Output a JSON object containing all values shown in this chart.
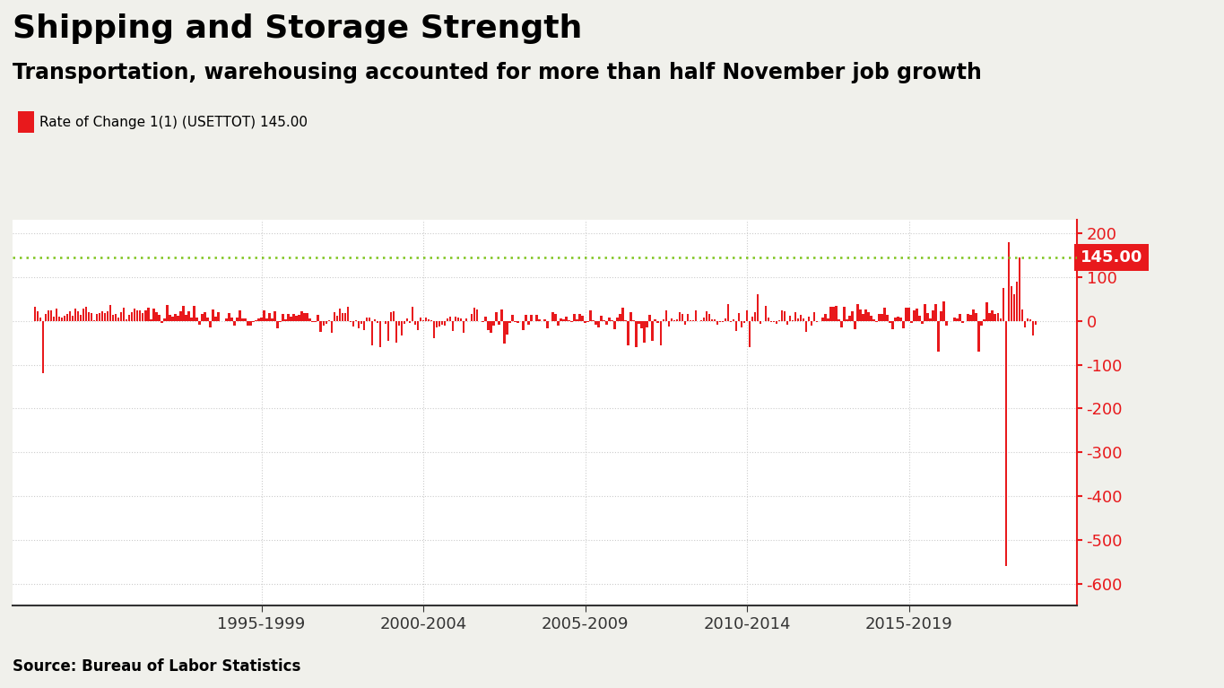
{
  "title": "Shipping and Storage Strength",
  "subtitle": "Transportation, warehousing accounted for more than half November job growth",
  "legend_label": "Rate of Change 1(1) (USETTOT) 145.00",
  "source": "Source: Bureau of Labor Statistics",
  "bar_color": "#e8191c",
  "dotted_line_color": "#7fc41e",
  "dotted_line_value": 145.0,
  "last_value": 145.0,
  "last_value_bg": "#e8191c",
  "last_value_color": "#ffffff",
  "ylim": [
    -650,
    230
  ],
  "yticks": [
    200,
    100,
    0,
    -100,
    -200,
    -300,
    -400,
    -500,
    -600
  ],
  "xtick_labels": [
    "1995-1999",
    "2000-2004",
    "2005-2009",
    "2010-2014",
    "2015-2019"
  ],
  "xtick_positions": [
    1997,
    2002,
    2007,
    2012,
    2017
  ],
  "title_fontsize": 26,
  "subtitle_fontsize": 17,
  "legend_fontsize": 11,
  "source_fontsize": 12,
  "background_color": "#f0f0eb",
  "chart_bg_color": "#ffffff",
  "grid_color": "#cccccc",
  "xmin": 1989.3,
  "xmax": 2022.2
}
